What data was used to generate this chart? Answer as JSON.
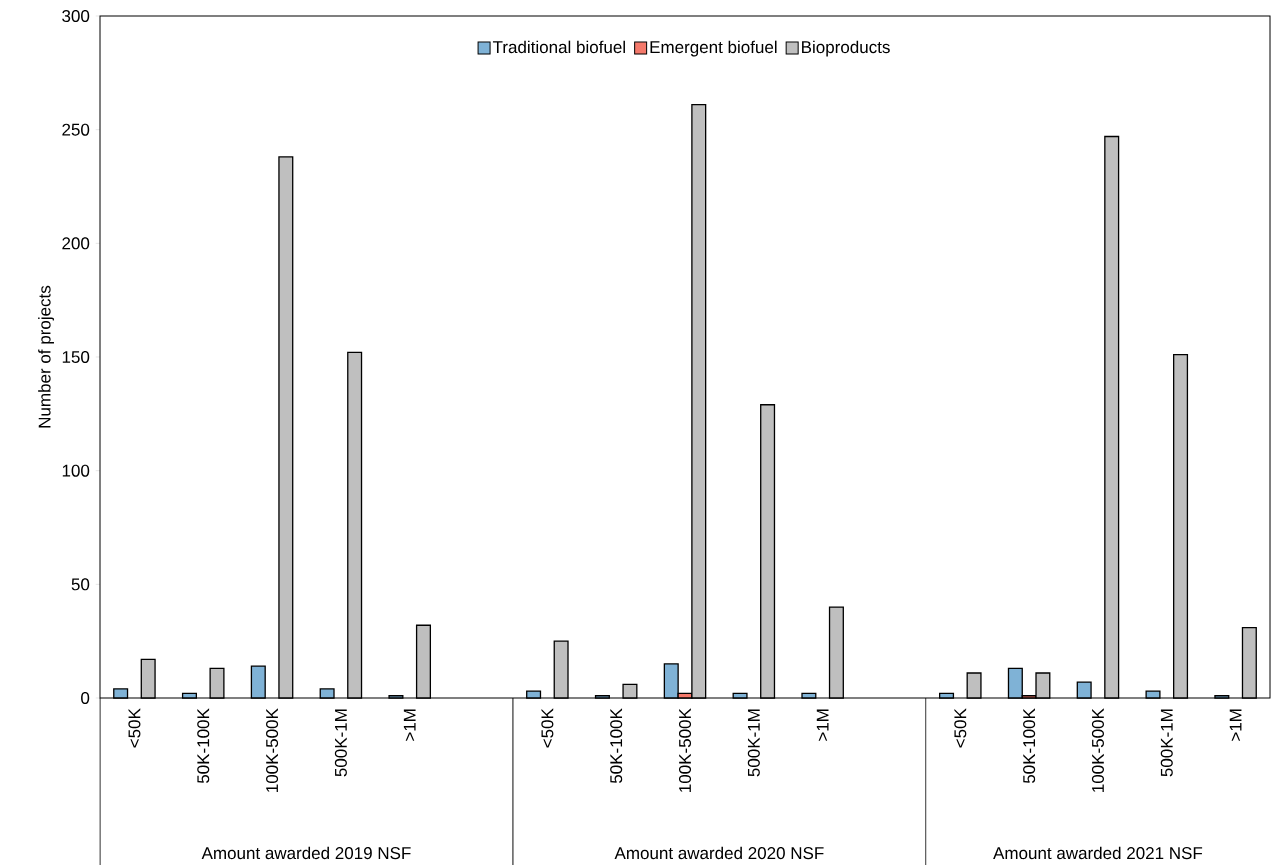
{
  "chart_data": {
    "type": "bar",
    "ylabel": "Number of projects",
    "categories": [
      "<50K",
      "50K-100K",
      "100K-500K",
      "500K-1M",
      ">1M",
      null,
      "<50K",
      "50K-100K",
      "100K-500K",
      "500K-1M",
      ">1M",
      null,
      "<50K",
      "50K-100K",
      "100K-500K",
      "500K-1M",
      ">1M"
    ],
    "series": [
      {
        "name": "Traditional biofuel",
        "color": "#7fb2d6",
        "values": [
          4,
          2,
          14,
          4,
          1,
          null,
          3,
          1,
          15,
          2,
          2,
          null,
          2,
          13,
          7,
          3,
          1
        ]
      },
      {
        "name": "Emergent biofuel",
        "color": "#f4796b",
        "values": [
          0,
          0,
          0,
          0,
          0,
          null,
          0,
          0,
          2,
          0,
          0,
          null,
          0,
          1,
          0,
          0,
          0
        ]
      },
      {
        "name": "Bioproducts",
        "color": "#bfbfbf",
        "values": [
          17,
          13,
          238,
          152,
          32,
          null,
          25,
          6,
          261,
          129,
          40,
          null,
          11,
          11,
          247,
          151,
          31
        ]
      }
    ],
    "ylim": [
      0,
      300
    ],
    "yticks": [
      0,
      50,
      100,
      150,
      200,
      250,
      300
    ],
    "grid": false,
    "legend": "top",
    "annotations": [
      "Amount awarded 2019 NSF",
      "Amount awarded 2020 NSF",
      "Amount awarded 2021 NSF"
    ]
  }
}
